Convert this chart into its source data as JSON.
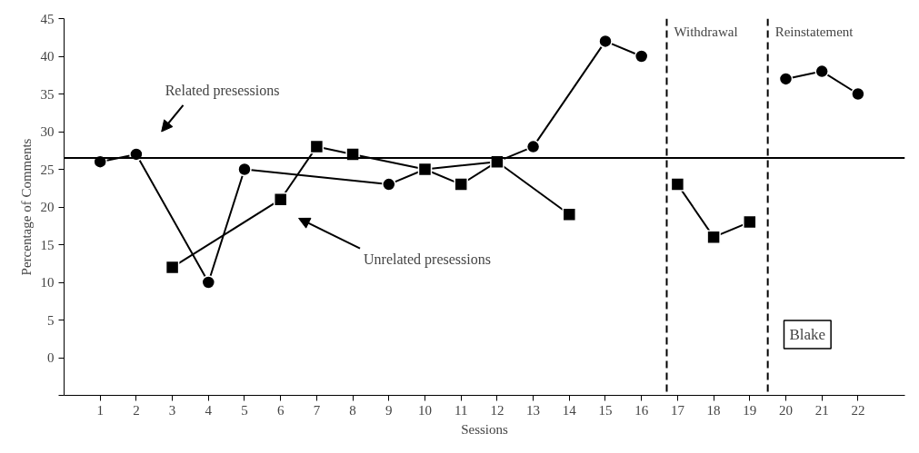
{
  "chart_data": {
    "type": "line",
    "xlabel": "Sessions",
    "ylabel": "Percentage of Comments",
    "series": [
      {
        "color": "#000000",
        "marker": "circle",
        "x": [
          1,
          2,
          4,
          5,
          9,
          10,
          12,
          13,
          15,
          16,
          18,
          20,
          21,
          22
        ],
        "values": [
          26,
          27,
          10,
          25,
          23,
          25,
          26,
          28,
          42,
          40,
          null,
          37,
          38,
          35
        ]
      },
      {
        "color": "#000000",
        "marker": "square",
        "x": [
          3,
          6,
          7,
          8,
          10,
          11,
          12,
          14,
          16,
          17,
          18,
          19
        ],
        "values": [
          12,
          21,
          28,
          27,
          25,
          23,
          26,
          19,
          null,
          23,
          16,
          18
        ]
      }
    ],
    "xlim": [
      0,
      23.3
    ],
    "ylim": [
      -5,
      45
    ],
    "xticks": [
      1,
      2,
      3,
      4,
      5,
      6,
      7,
      8,
      9,
      10,
      11,
      12,
      13,
      14,
      15,
      16,
      17,
      18,
      19,
      20,
      21,
      22
    ],
    "yticks": [
      {
        "value": -5,
        "label": null
      },
      0,
      5,
      10,
      15,
      20,
      25,
      30,
      35,
      40,
      45
    ],
    "grid": false,
    "line_style": "solid",
    "ref_lines": [
      {
        "axis": "y",
        "value": 26.5,
        "line_style": "solid",
        "color": "#000000"
      },
      {
        "axis": "x",
        "value": 16.7,
        "label": "Withdrawal",
        "line_style": "dashed",
        "color": "#000000"
      },
      {
        "axis": "x",
        "value": 19.5,
        "label": "Reinstatement",
        "line_style": "dashed",
        "color": "#000000"
      }
    ],
    "annotations": [
      "Related presessions",
      "Unrelated presessions",
      "Blake"
    ]
  }
}
